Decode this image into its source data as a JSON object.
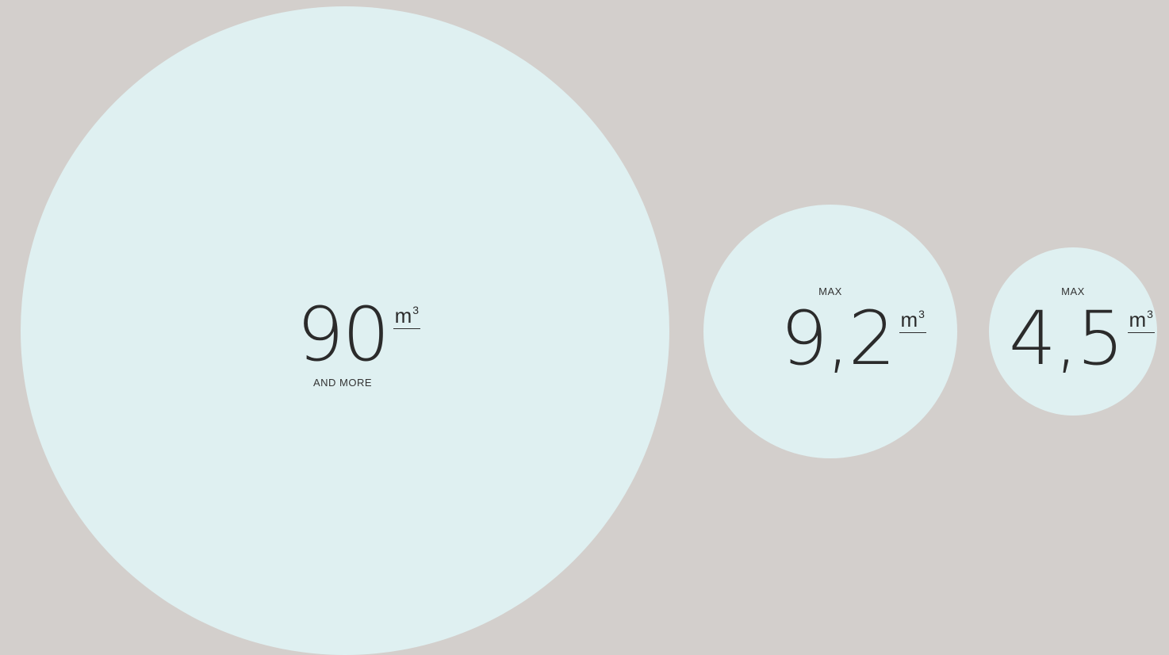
{
  "volumes": [
    {
      "value": "90",
      "unit_base": "m",
      "unit_exp": "3",
      "caption": "AND MORE"
    },
    {
      "value": "9,2",
      "unit_base": "m",
      "unit_exp": "3",
      "caption": "MAX"
    },
    {
      "value": "4,5",
      "unit_base": "m",
      "unit_exp": "3",
      "caption": "MAX"
    }
  ],
  "colors": {
    "background": "#d3cfcc",
    "circle_fill": "#dff0f1",
    "text": "#2b2b2b"
  }
}
